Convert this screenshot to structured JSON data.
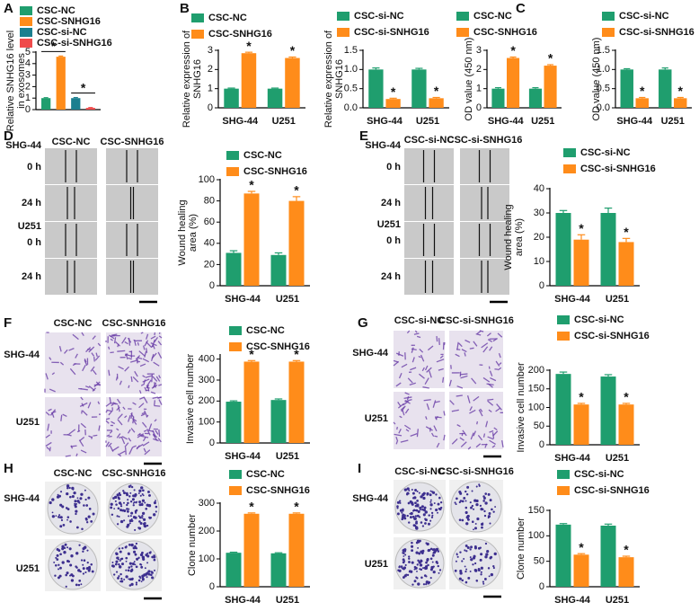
{
  "panel_letters": [
    "A",
    "B",
    "C",
    "D",
    "E",
    "F",
    "G",
    "H",
    "I"
  ],
  "image_panels": [
    {
      "columns": [
        "CSC-NC",
        "CSC-SNHG16"
      ],
      "rows": [
        "SHG-44",
        "0 h",
        "24 h",
        "U251",
        "0 h",
        "24 h"
      ]
    },
    {
      "columns": [
        "CSC-si-NC",
        "CSC-si-SNHG16"
      ],
      "rows": [
        "SHG-44",
        "0 h",
        "24 h",
        "U251",
        "0 h",
        "24 h"
      ]
    },
    {
      "columns": [
        "CSC-NC",
        "CSC-SNHG16"
      ],
      "rows": [
        "SHG-44",
        "U251"
      ]
    },
    {
      "columns": [
        "CSC-si-NC",
        "CSC-si-SNHG16"
      ],
      "rows": [
        "SHG-44",
        "U251"
      ]
    },
    {
      "columns": [
        "CSC-NC",
        "CSC-SNHG16"
      ],
      "rows": [
        "SHG-44",
        "U251"
      ]
    },
    {
      "columns": [
        "CSC-si-NC",
        "CSC-si-SNHG16"
      ],
      "rows": [
        "SHG-44",
        "U251"
      ]
    }
  ],
  "chart_data": [
    {
      "type": "bar",
      "y_label": [
        "Relative SNHG16 level",
        "in exosomes"
      ],
      "categories": [
        null
      ],
      "series": [
        {
          "name": "CSC-NC",
          "color": "#1f9e6e",
          "values": [
            1.0
          ],
          "errors": [
            0.04
          ]
        },
        {
          "name": "CSC-SNHG16",
          "color": "#ff8c1a",
          "values": [
            4.6
          ],
          "errors": [
            0.06
          ]
        },
        {
          "name": "CSC-si-NC",
          "color": "#1b7f8f",
          "values": [
            1.0
          ],
          "errors": [
            0.05
          ]
        },
        {
          "name": "CSC-si-SNHG16",
          "color": "#ef4b4b",
          "values": [
            0.15
          ],
          "errors": [
            0.03
          ]
        }
      ],
      "annotations": [
        "*",
        "*"
      ],
      "ylim": [
        0,
        5
      ],
      "yticks": [
        0,
        1,
        2,
        3,
        4,
        5
      ]
    },
    {
      "type": "bar",
      "y_label": [
        "Relative expression of",
        "SNHG16"
      ],
      "categories": [
        "SHG-44",
        "U251"
      ],
      "series": [
        {
          "name": "CSC-NC",
          "color": "#1f9e6e",
          "values": [
            1.0,
            1.0
          ],
          "errors": [
            0.03,
            0.03
          ]
        },
        {
          "name": "CSC-SNHG16",
          "color": "#ff8c1a",
          "values": [
            2.85,
            2.6
          ],
          "errors": [
            0.05,
            0.05
          ],
          "annotations": [
            "*",
            "*"
          ]
        }
      ],
      "ylim": [
        0,
        3
      ],
      "yticks": [
        0,
        1,
        2,
        3
      ]
    },
    {
      "type": "bar",
      "y_label": [
        "Relative expression of",
        "SNHG16"
      ],
      "categories": [
        "SHG-44",
        "U251"
      ],
      "series": [
        {
          "name": "CSC-si-NC",
          "color": "#1f9e6e",
          "values": [
            1.0,
            1.0
          ],
          "errors": [
            0.04,
            0.03
          ]
        },
        {
          "name": "CSC-si-SNHG16",
          "color": "#ff8c1a",
          "values": [
            0.23,
            0.25
          ],
          "errors": [
            0.02,
            0.02
          ],
          "annotations": [
            "*",
            "*"
          ]
        }
      ],
      "ylim": [
        0,
        1.5
      ],
      "yticks": [
        {
          "value": 0,
          "label": "0.0"
        },
        0.5,
        {
          "value": 1,
          "label": "1.0"
        },
        1.5
      ]
    },
    {
      "type": "bar",
      "y_label": [
        "OD value (450 nm)"
      ],
      "categories": [
        "SHG-44",
        "U251"
      ],
      "series": [
        {
          "name": "CSC-NC",
          "color": "#1f9e6e",
          "values": [
            1.0,
            1.0
          ],
          "errors": [
            0.05,
            0.05
          ]
        },
        {
          "name": "CSC-SNHG16",
          "color": "#ff8c1a",
          "values": [
            2.6,
            2.2
          ],
          "errors": [
            0.05,
            0.05
          ],
          "annotations": [
            "*",
            "*"
          ]
        }
      ],
      "ylim": [
        0,
        3
      ],
      "yticks": [
        0,
        1,
        2,
        3
      ]
    },
    {
      "type": "bar",
      "y_label": [
        "OD value (450 nm)"
      ],
      "categories": [
        "SHG-44",
        "U251"
      ],
      "series": [
        {
          "name": "CSC-si-NC",
          "color": "#1f9e6e",
          "values": [
            1.0,
            1.0
          ],
          "errors": [
            0.02,
            0.04
          ]
        },
        {
          "name": "CSC-si-SNHG16",
          "color": "#ff8c1a",
          "values": [
            0.25,
            0.25
          ],
          "errors": [
            0.02,
            0.02
          ],
          "annotations": [
            "*",
            "*"
          ]
        }
      ],
      "ylim": [
        0,
        1.5
      ],
      "yticks": [
        {
          "value": 0,
          "label": "0.0"
        },
        0.5,
        {
          "value": 1,
          "label": "1.0"
        },
        1.5
      ]
    },
    {
      "type": "bar",
      "y_label": [
        "Wound healing",
        "area (%)"
      ],
      "categories": [
        "SHG-44",
        "U251"
      ],
      "series": [
        {
          "name": "CSC-NC",
          "color": "#1f9e6e",
          "values": [
            31,
            29
          ],
          "errors": [
            2,
            2
          ]
        },
        {
          "name": "CSC-SNHG16",
          "color": "#ff8c1a",
          "values": [
            87,
            80
          ],
          "errors": [
            2,
            4
          ],
          "annotations": [
            "*",
            "*"
          ]
        }
      ],
      "ylim": [
        0,
        100
      ],
      "yticks": [
        0,
        20,
        40,
        60,
        80,
        100
      ]
    },
    {
      "type": "bar",
      "y_label": [
        "Wound healing",
        "area (%)"
      ],
      "categories": [
        "SHG-44",
        "U251"
      ],
      "series": [
        {
          "name": "CSC-si-NC",
          "color": "#1f9e6e",
          "values": [
            30,
            30
          ],
          "errors": [
            1,
            2
          ]
        },
        {
          "name": "CSC-si-SNHG16",
          "color": "#ff8c1a",
          "values": [
            19,
            18
          ],
          "errors": [
            2,
            1.5
          ],
          "annotations": [
            "*",
            "*"
          ]
        }
      ],
      "ylim": [
        0,
        40
      ],
      "yticks": [
        0,
        10,
        20,
        30,
        40
      ]
    },
    {
      "type": "bar",
      "y_label": [
        "Invasive cell number"
      ],
      "categories": [
        "SHG-44",
        "U251"
      ],
      "series": [
        {
          "name": "CSC-NC",
          "color": "#1f9e6e",
          "values": [
            197,
            205
          ],
          "errors": [
            4,
            5
          ]
        },
        {
          "name": "CSC-SNHG16",
          "color": "#ff8c1a",
          "values": [
            388,
            388
          ],
          "errors": [
            5,
            5
          ],
          "annotations": [
            "*",
            "*"
          ]
        }
      ],
      "ylim": [
        0,
        420
      ],
      "yticks": [
        0,
        100,
        200,
        300,
        400
      ]
    },
    {
      "type": "bar",
      "y_label": [
        "Invasive cell number"
      ],
      "categories": [
        "SHG-44",
        "U251"
      ],
      "series": [
        {
          "name": "CSC-si-NC",
          "color": "#1f9e6e",
          "values": [
            190,
            183
          ],
          "errors": [
            5,
            5
          ]
        },
        {
          "name": "CSC-si-SNHG16",
          "color": "#ff8c1a",
          "values": [
            108,
            108
          ],
          "errors": [
            3,
            3
          ],
          "annotations": [
            "*",
            "*"
          ]
        }
      ],
      "ylim": [
        0,
        200
      ],
      "yticks": [
        0,
        50,
        100,
        150,
        200
      ]
    },
    {
      "type": "bar",
      "y_label": [
        "Clone number"
      ],
      "categories": [
        "SHG-44",
        "U251"
      ],
      "series": [
        {
          "name": "CSC-NC",
          "color": "#1f9e6e",
          "values": [
            122,
            120
          ],
          "errors": [
            2,
            2
          ]
        },
        {
          "name": "CSC-SNHG16",
          "color": "#ff8c1a",
          "values": [
            262,
            262
          ],
          "errors": [
            3,
            3
          ],
          "annotations": [
            "*",
            "*"
          ]
        }
      ],
      "ylim": [
        0,
        300
      ],
      "yticks": [
        0,
        100,
        200,
        300
      ]
    },
    {
      "type": "bar",
      "y_label": [
        "Clone number"
      ],
      "categories": [
        "SHG-44",
        "U251"
      ],
      "series": [
        {
          "name": "CSC-si-NC",
          "color": "#1f9e6e",
          "values": [
            122,
            120
          ],
          "errors": [
            2,
            3
          ]
        },
        {
          "name": "CSC-si-SNHG16",
          "color": "#ff8c1a",
          "values": [
            63,
            58
          ],
          "errors": [
            2,
            2
          ],
          "annotations": [
            "*",
            "*"
          ]
        }
      ],
      "ylim": [
        0,
        150
      ],
      "yticks": [
        0,
        50,
        100,
        150
      ]
    }
  ]
}
